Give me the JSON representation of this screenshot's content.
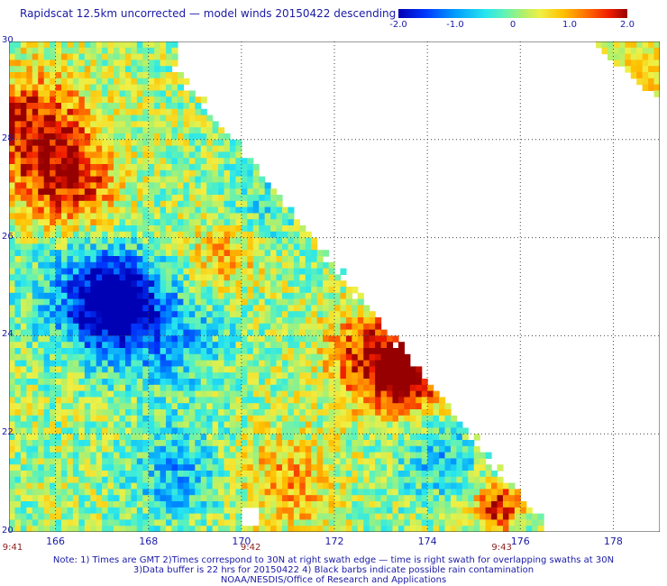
{
  "title": "Rapidscat 12.5km uncorrected — model winds 20150422 descending",
  "colorbar": {
    "ticks": [
      "-2.0",
      "-1.0",
      "0",
      "1.0",
      "2.0"
    ],
    "range": [
      -2.0,
      2.0
    ]
  },
  "notes": [
    "Note: 1) Times are GMT 2)Times correspond to 30N at right swath edge — time is right swath for overlapping swaths at 30N",
    "3)Data buffer is 22 hrs for 20150422 4) Black barbs indicate possible rain contamination",
    "NOAA/NESDIS/Office of Research and Applications"
  ],
  "chart_data": {
    "type": "heatmap",
    "title": "Rapidscat 12.5km uncorrected — model winds 20150422 descending",
    "x_ticks": [
      "166",
      "168",
      "170",
      "172",
      "174",
      "176",
      "178"
    ],
    "y_ticks": [
      "30",
      "28",
      "26",
      "24",
      "22",
      "20"
    ],
    "xlim": [
      165.0,
      179.0
    ],
    "ylim": [
      20.0,
      30.0
    ],
    "grid": true,
    "time_labels": [
      {
        "lon": 165.0,
        "label": "9:41"
      },
      {
        "lon": 170.2,
        "label": "9:42"
      },
      {
        "lon": 175.6,
        "label": "9:43"
      }
    ],
    "swath_edges": [
      [
        168.6,
        29.4
      ],
      [
        176.6,
        20.0
      ]
    ],
    "second_swath_edges": [
      [
        177.5,
        30.0
      ],
      [
        179.0,
        28.8
      ]
    ],
    "anomaly_centers": [
      {
        "lon": 165.5,
        "lat": 28.2,
        "value": 1.7,
        "r": 1.2
      },
      {
        "lon": 166.4,
        "lat": 27.0,
        "value": 1.4,
        "r": 1.0
      },
      {
        "lon": 167.3,
        "lat": 24.6,
        "value": -1.9,
        "r": 0.8
      },
      {
        "lon": 166.8,
        "lat": 24.9,
        "value": -1.2,
        "r": 1.3
      },
      {
        "lon": 168.5,
        "lat": 24.0,
        "value": -0.9,
        "r": 1.2
      },
      {
        "lon": 173.6,
        "lat": 23.2,
        "value": 2.0,
        "r": 0.8
      },
      {
        "lon": 172.8,
        "lat": 23.6,
        "value": 1.4,
        "r": 1.0
      },
      {
        "lon": 175.5,
        "lat": 20.5,
        "value": 1.6,
        "r": 0.5
      },
      {
        "lon": 168.6,
        "lat": 21.2,
        "value": -0.9,
        "r": 1.0
      },
      {
        "lon": 171.0,
        "lat": 21.0,
        "value": 0.9,
        "r": 1.0
      },
      {
        "lon": 174.2,
        "lat": 21.5,
        "value": -0.8,
        "r": 0.9
      },
      {
        "lon": 178.6,
        "lat": 29.3,
        "value": 0.8,
        "r": 0.6
      },
      {
        "lon": 170.4,
        "lat": 26.8,
        "value": -0.5,
        "r": 1.0
      },
      {
        "lon": 169.6,
        "lat": 25.6,
        "value": 0.8,
        "r": 0.8
      }
    ]
  }
}
